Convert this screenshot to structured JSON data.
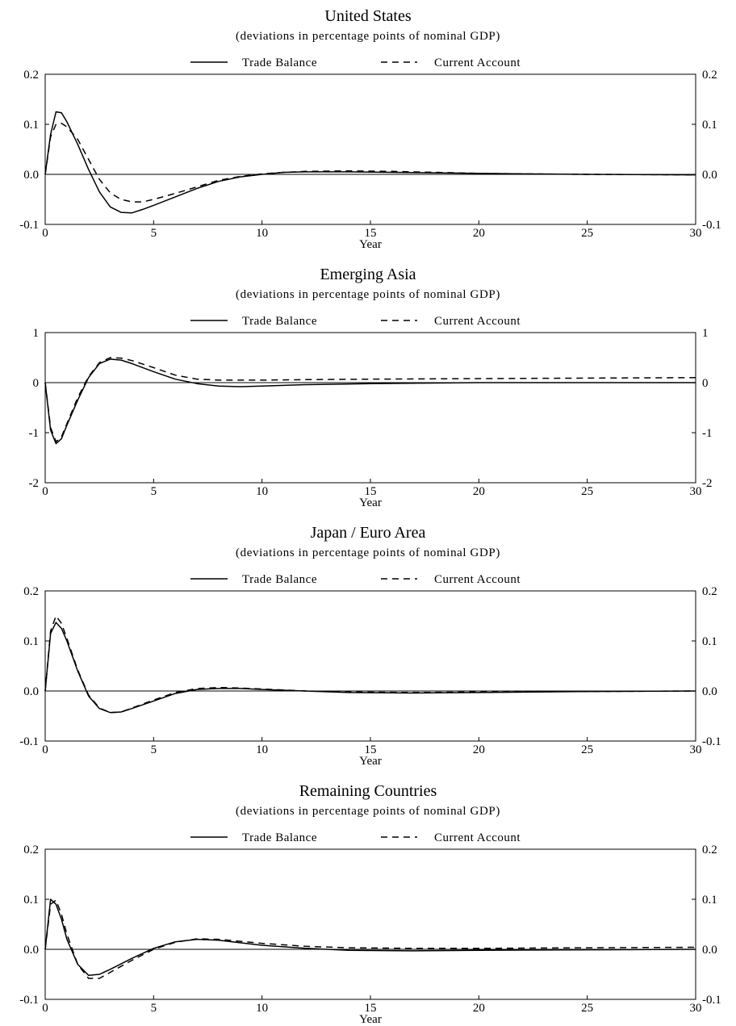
{
  "chart_data": [
    {
      "type": "line",
      "title": "United States",
      "subtitle": "(deviations in percentage points of nominal GDP)",
      "xlabel": "Year",
      "ylabel": "",
      "xlim": [
        0,
        30
      ],
      "ylim": [
        -0.1,
        0.2
      ],
      "xticks": [
        "0",
        "5",
        "10",
        "15",
        "20",
        "25",
        "30"
      ],
      "yticks": [
        "0.2",
        "0.1",
        "0.0",
        "-0.1"
      ],
      "legend": "top-center",
      "series": [
        {
          "name": "Trade Balance",
          "style": "solid",
          "points": [
            [
              0,
              0
            ],
            [
              0.25,
              0.08
            ],
            [
              0.5,
              0.125
            ],
            [
              0.75,
              0.123
            ],
            [
              1,
              0.105
            ],
            [
              1.5,
              0.06
            ],
            [
              2,
              0.01
            ],
            [
              2.5,
              -0.035
            ],
            [
              3,
              -0.065
            ],
            [
              3.5,
              -0.076
            ],
            [
              4,
              -0.077
            ],
            [
              4.5,
              -0.07
            ],
            [
              5,
              -0.062
            ],
            [
              6,
              -0.045
            ],
            [
              7,
              -0.028
            ],
            [
              8,
              -0.014
            ],
            [
              9,
              -0.005
            ],
            [
              10,
              0
            ],
            [
              11,
              0.004
            ],
            [
              12,
              0.005
            ],
            [
              14,
              0.005
            ],
            [
              16,
              0.004
            ],
            [
              18,
              0.003
            ],
            [
              20,
              0.002
            ],
            [
              22,
              0.001
            ],
            [
              25,
              0
            ],
            [
              30,
              -0.001
            ]
          ]
        },
        {
          "name": "Current Account",
          "style": "dashed",
          "points": [
            [
              0,
              0
            ],
            [
              0.25,
              0.075
            ],
            [
              0.5,
              0.1
            ],
            [
              0.75,
              0.102
            ],
            [
              1,
              0.095
            ],
            [
              1.5,
              0.07
            ],
            [
              2,
              0.03
            ],
            [
              2.5,
              -0.01
            ],
            [
              3,
              -0.037
            ],
            [
              3.5,
              -0.05
            ],
            [
              4,
              -0.055
            ],
            [
              4.5,
              -0.055
            ],
            [
              5,
              -0.05
            ],
            [
              6,
              -0.038
            ],
            [
              7,
              -0.025
            ],
            [
              8,
              -0.012
            ],
            [
              9,
              -0.004
            ],
            [
              10,
              0.001
            ],
            [
              11,
              0.004
            ],
            [
              12,
              0.006
            ],
            [
              14,
              0.007
            ],
            [
              16,
              0.006
            ],
            [
              18,
              0.004
            ],
            [
              20,
              0.002
            ],
            [
              22,
              0.001
            ],
            [
              25,
              0
            ],
            [
              30,
              -0.001
            ]
          ]
        }
      ]
    },
    {
      "type": "line",
      "title": "Emerging Asia",
      "subtitle": "(deviations in percentage points of nominal GDP)",
      "xlabel": "Year",
      "ylabel": "",
      "xlim": [
        0,
        30
      ],
      "ylim": [
        -2,
        1
      ],
      "xticks": [
        "0",
        "5",
        "10",
        "15",
        "20",
        "25",
        "30"
      ],
      "yticks": [
        "1",
        "0",
        "-1",
        "-2"
      ],
      "legend": "top-center",
      "series": [
        {
          "name": "Trade Balance",
          "style": "solid",
          "points": [
            [
              0,
              0
            ],
            [
              0.25,
              -0.95
            ],
            [
              0.5,
              -1.22
            ],
            [
              0.75,
              -1.12
            ],
            [
              1,
              -0.85
            ],
            [
              1.5,
              -0.35
            ],
            [
              2,
              0.1
            ],
            [
              2.5,
              0.38
            ],
            [
              3,
              0.47
            ],
            [
              3.5,
              0.45
            ],
            [
              4,
              0.38
            ],
            [
              5,
              0.22
            ],
            [
              6,
              0.07
            ],
            [
              7,
              -0.02
            ],
            [
              8,
              -0.07
            ],
            [
              9,
              -0.08
            ],
            [
              10,
              -0.07
            ],
            [
              12,
              -0.04
            ],
            [
              15,
              -0.02
            ],
            [
              20,
              0
            ],
            [
              25,
              0
            ],
            [
              30,
              0
            ]
          ]
        },
        {
          "name": "Current Account",
          "style": "dashed",
          "points": [
            [
              0,
              0
            ],
            [
              0.25,
              -0.9
            ],
            [
              0.5,
              -1.18
            ],
            [
              0.75,
              -1.08
            ],
            [
              1,
              -0.82
            ],
            [
              1.5,
              -0.3
            ],
            [
              2,
              0.12
            ],
            [
              2.5,
              0.4
            ],
            [
              3,
              0.5
            ],
            [
              3.5,
              0.49
            ],
            [
              4,
              0.44
            ],
            [
              5,
              0.3
            ],
            [
              6,
              0.15
            ],
            [
              7,
              0.07
            ],
            [
              8,
              0.05
            ],
            [
              10,
              0.05
            ],
            [
              12,
              0.06
            ],
            [
              15,
              0.07
            ],
            [
              20,
              0.08
            ],
            [
              25,
              0.09
            ],
            [
              30,
              0.1
            ]
          ]
        }
      ]
    },
    {
      "type": "line",
      "title": "Japan / Euro Area",
      "subtitle": "(deviations in percentage points of nominal GDP)",
      "xlabel": "Year",
      "ylabel": "",
      "xlim": [
        0,
        30
      ],
      "ylim": [
        -0.1,
        0.2
      ],
      "xticks": [
        "0",
        "5",
        "10",
        "15",
        "20",
        "25",
        "30"
      ],
      "yticks": [
        "0.2",
        "0.1",
        "0.0",
        "-0.1"
      ],
      "legend": "top-center",
      "series": [
        {
          "name": "Trade Balance",
          "style": "solid",
          "points": [
            [
              0,
              0
            ],
            [
              0.25,
              0.115
            ],
            [
              0.5,
              0.137
            ],
            [
              0.75,
              0.125
            ],
            [
              1,
              0.1
            ],
            [
              1.5,
              0.04
            ],
            [
              2,
              -0.01
            ],
            [
              2.5,
              -0.035
            ],
            [
              3,
              -0.043
            ],
            [
              3.5,
              -0.042
            ],
            [
              4,
              -0.035
            ],
            [
              5,
              -0.02
            ],
            [
              6,
              -0.005
            ],
            [
              7,
              0.003
            ],
            [
              8,
              0.005
            ],
            [
              9,
              0.005
            ],
            [
              10,
              0.003
            ],
            [
              12,
              0
            ],
            [
              14,
              -0.003
            ],
            [
              17,
              -0.004
            ],
            [
              20,
              -0.003
            ],
            [
              25,
              -0.001
            ],
            [
              30,
              0
            ]
          ]
        },
        {
          "name": "Current Account",
          "style": "dashed",
          "points": [
            [
              0,
              0
            ],
            [
              0.25,
              0.12
            ],
            [
              0.5,
              0.15
            ],
            [
              0.75,
              0.135
            ],
            [
              1,
              0.105
            ],
            [
              1.5,
              0.042
            ],
            [
              2,
              -0.008
            ],
            [
              2.5,
              -0.034
            ],
            [
              3,
              -0.043
            ],
            [
              3.5,
              -0.042
            ],
            [
              4,
              -0.034
            ],
            [
              5,
              -0.018
            ],
            [
              6,
              -0.003
            ],
            [
              7,
              0.005
            ],
            [
              8,
              0.007
            ],
            [
              9,
              0.006
            ],
            [
              10,
              0.004
            ],
            [
              12,
              0
            ],
            [
              14,
              -0.002
            ],
            [
              17,
              -0.003
            ],
            [
              20,
              -0.002
            ],
            [
              25,
              -0.001
            ],
            [
              30,
              0
            ]
          ]
        }
      ]
    },
    {
      "type": "line",
      "title": "Remaining Countries",
      "subtitle": "(deviations in percentage points of nominal GDP)",
      "xlabel": "Year",
      "ylabel": "",
      "xlim": [
        0,
        30
      ],
      "ylim": [
        -0.1,
        0.2
      ],
      "xticks": [
        "0",
        "5",
        "10",
        "15",
        "20",
        "25",
        "30"
      ],
      "yticks": [
        "0.2",
        "0.1",
        "0.0",
        "-0.1"
      ],
      "legend": "top-center",
      "series": [
        {
          "name": "Trade Balance",
          "style": "solid",
          "points": [
            [
              0,
              0
            ],
            [
              0.25,
              0.1
            ],
            [
              0.5,
              0.09
            ],
            [
              0.75,
              0.06
            ],
            [
              1,
              0.02
            ],
            [
              1.5,
              -0.03
            ],
            [
              2,
              -0.052
            ],
            [
              2.5,
              -0.05
            ],
            [
              3,
              -0.04
            ],
            [
              4,
              -0.018
            ],
            [
              5,
              0.002
            ],
            [
              6,
              0.015
            ],
            [
              7,
              0.02
            ],
            [
              8,
              0.018
            ],
            [
              9,
              0.013
            ],
            [
              10,
              0.008
            ],
            [
              12,
              0.002
            ],
            [
              14,
              -0.002
            ],
            [
              17,
              -0.003
            ],
            [
              20,
              -0.002
            ],
            [
              25,
              -0.001
            ],
            [
              30,
              0
            ]
          ]
        },
        {
          "name": "Current Account",
          "style": "dashed",
          "points": [
            [
              0,
              0
            ],
            [
              0.25,
              0.09
            ],
            [
              0.5,
              0.098
            ],
            [
              0.75,
              0.07
            ],
            [
              1,
              0.03
            ],
            [
              1.5,
              -0.03
            ],
            [
              2,
              -0.058
            ],
            [
              2.5,
              -0.058
            ],
            [
              3,
              -0.046
            ],
            [
              4,
              -0.022
            ],
            [
              5,
              0
            ],
            [
              6,
              0.014
            ],
            [
              7,
              0.021
            ],
            [
              8,
              0.02
            ],
            [
              9,
              0.016
            ],
            [
              10,
              0.012
            ],
            [
              12,
              0.006
            ],
            [
              14,
              0.003
            ],
            [
              17,
              0.002
            ],
            [
              20,
              0.002
            ],
            [
              25,
              0.003
            ],
            [
              30,
              0.004
            ]
          ]
        }
      ]
    }
  ]
}
